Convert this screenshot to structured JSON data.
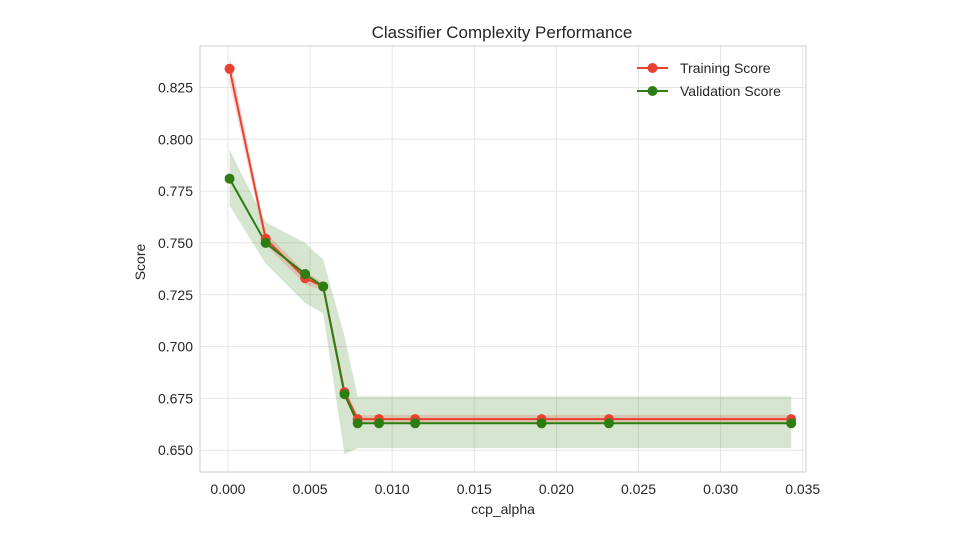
{
  "chart_data": {
    "type": "line",
    "title": "Classifier Complexity Performance",
    "xlabel": "ccp_alpha",
    "ylabel": "Score",
    "xlim": [
      -0.0017,
      0.0352
    ],
    "ylim": [
      0.6395,
      0.845
    ],
    "xticks": [
      0.0,
      0.005,
      0.01,
      0.015,
      0.02,
      0.025,
      0.03,
      0.035
    ],
    "xtick_labels": [
      "0.000",
      "0.005",
      "0.010",
      "0.015",
      "0.020",
      "0.025",
      "0.030",
      "0.035"
    ],
    "yticks": [
      0.65,
      0.675,
      0.7,
      0.725,
      0.75,
      0.775,
      0.8,
      0.825
    ],
    "ytick_labels": [
      "0.650",
      "0.675",
      "0.700",
      "0.725",
      "0.750",
      "0.775",
      "0.800",
      "0.825"
    ],
    "grid": true,
    "legend_position": "top-right",
    "x": [
      0.0001,
      0.0023,
      0.0047,
      0.0058,
      0.0071,
      0.0079,
      0.0092,
      0.0114,
      0.0191,
      0.0232,
      0.0343
    ],
    "series": [
      {
        "name": "Training Score",
        "color": "#e8412f",
        "values": [
          0.834,
          0.752,
          0.733,
          0.729,
          0.678,
          0.665,
          0.665,
          0.665,
          0.665,
          0.665,
          0.665
        ],
        "band_upper": [
          0.841,
          0.755,
          0.736,
          0.731,
          0.68,
          0.667,
          0.667,
          0.667,
          0.667,
          0.667,
          0.667
        ],
        "band_lower": [
          0.827,
          0.749,
          0.73,
          0.727,
          0.676,
          0.663,
          0.663,
          0.663,
          0.663,
          0.663,
          0.663
        ]
      },
      {
        "name": "Validation Score",
        "color": "#2e7d12",
        "values": [
          0.781,
          0.75,
          0.735,
          0.729,
          0.677,
          0.663,
          0.663,
          0.663,
          0.663,
          0.663,
          0.663
        ],
        "band_upper": [
          0.795,
          0.76,
          0.75,
          0.742,
          0.705,
          0.676,
          0.676,
          0.676,
          0.676,
          0.676,
          0.676
        ],
        "band_lower": [
          0.768,
          0.74,
          0.721,
          0.716,
          0.648,
          0.651,
          0.651,
          0.651,
          0.651,
          0.651,
          0.651
        ]
      }
    ]
  }
}
